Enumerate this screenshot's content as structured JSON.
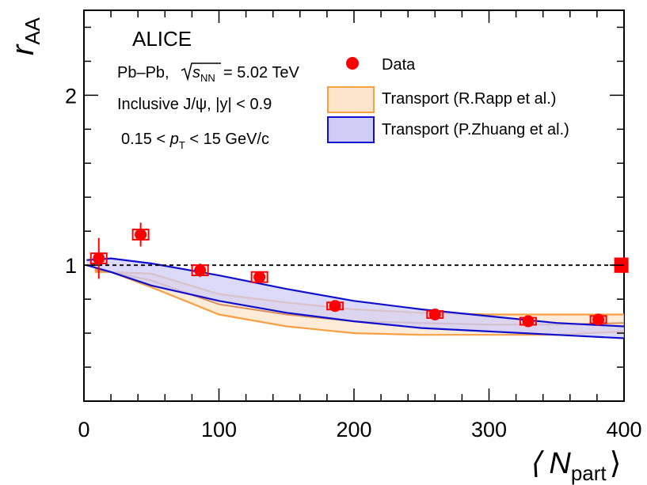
{
  "chart_data": {
    "type": "scatter",
    "experiment": "ALICE",
    "annotations": {
      "system": "Pb–Pb,",
      "energy_symbol": "s",
      "energy_subscript": "NN",
      "energy_value": "= 5.02 TeV",
      "selection_1": "Inclusive J/ψ, |y| < 0.9",
      "pt_prefix": "0.15 <",
      "pt_symbol": "p",
      "pt_subscript": "T",
      "pt_suffix": "< 15 GeV/c"
    },
    "ylabel": "r",
    "ylabel_sub": "AA",
    "xlabel": "⟨ N",
    "xlabel_sub": "part",
    "xlabel_close": "⟩",
    "xlim": [
      0,
      400
    ],
    "ylim": [
      0.2,
      2.5
    ],
    "xticks": [
      0,
      100,
      200,
      300,
      400
    ],
    "yticks": [
      1,
      2
    ],
    "reference_line": 1,
    "global_uncertainty": {
      "x": 398,
      "y": 1.0,
      "half_height": 0.045
    },
    "legend": {
      "placement": "top-right",
      "entries": [
        "Data",
        "Transport (R.Rapp et al.)",
        "Transport (P.Zhuang et al.)"
      ]
    },
    "series": [
      {
        "name": "Data",
        "kind": "points",
        "color": "#ff0000",
        "points": [
          {
            "x": 11,
            "y": 1.04,
            "stat": 0.12,
            "sys": 0.03
          },
          {
            "x": 42,
            "y": 1.18,
            "stat": 0.07,
            "sys": 0.03
          },
          {
            "x": 86,
            "y": 0.97,
            "stat": 0.04,
            "sys": 0.03
          },
          {
            "x": 130,
            "y": 0.93,
            "stat": 0.03,
            "sys": 0.03
          },
          {
            "x": 186,
            "y": 0.76,
            "stat": 0.03,
            "sys": 0.02
          },
          {
            "x": 260,
            "y": 0.71,
            "stat": 0.02,
            "sys": 0.02
          },
          {
            "x": 329,
            "y": 0.67,
            "stat": 0.02,
            "sys": 0.015
          },
          {
            "x": 381,
            "y": 0.68,
            "stat": 0.02,
            "sys": 0.02
          }
        ]
      },
      {
        "name": "Transport (R.Rapp et al.)",
        "kind": "band",
        "stroke": "#f7a043",
        "fill": "#fde5cc",
        "mid_stroke": "#d99060",
        "upper": [
          [
            8,
            0.98
          ],
          [
            20,
            0.96
          ],
          [
            50,
            0.95
          ],
          [
            100,
            0.83
          ],
          [
            150,
            0.78
          ],
          [
            200,
            0.74
          ],
          [
            250,
            0.72
          ],
          [
            300,
            0.71
          ],
          [
            350,
            0.71
          ],
          [
            400,
            0.71
          ]
        ],
        "lower": [
          [
            8,
            0.96
          ],
          [
            20,
            0.96
          ],
          [
            50,
            0.87
          ],
          [
            100,
            0.71
          ],
          [
            150,
            0.64
          ],
          [
            200,
            0.6
          ],
          [
            250,
            0.59
          ],
          [
            300,
            0.59
          ],
          [
            350,
            0.59
          ],
          [
            400,
            0.61
          ]
        ],
        "mid": [
          [
            8,
            0.97
          ],
          [
            20,
            0.96
          ],
          [
            50,
            0.91
          ],
          [
            100,
            0.77
          ],
          [
            150,
            0.71
          ],
          [
            200,
            0.67
          ],
          [
            250,
            0.66
          ],
          [
            300,
            0.65
          ],
          [
            350,
            0.65
          ],
          [
            400,
            0.66
          ]
        ]
      },
      {
        "name": "Transport (P.Zhuang et al.)",
        "kind": "band",
        "stroke": "#1010cc",
        "fill": "#cfcdf6",
        "upper": [
          [
            2,
            1.03
          ],
          [
            20,
            1.04
          ],
          [
            50,
            1.01
          ],
          [
            100,
            0.94
          ],
          [
            150,
            0.86
          ],
          [
            200,
            0.79
          ],
          [
            250,
            0.74
          ],
          [
            300,
            0.7
          ],
          [
            350,
            0.66
          ],
          [
            400,
            0.64
          ]
        ],
        "lower": [
          [
            2,
            1.0
          ],
          [
            20,
            0.96
          ],
          [
            50,
            0.88
          ],
          [
            100,
            0.79
          ],
          [
            150,
            0.72
          ],
          [
            200,
            0.67
          ],
          [
            250,
            0.63
          ],
          [
            300,
            0.61
          ],
          [
            350,
            0.59
          ],
          [
            400,
            0.57
          ]
        ]
      }
    ]
  }
}
